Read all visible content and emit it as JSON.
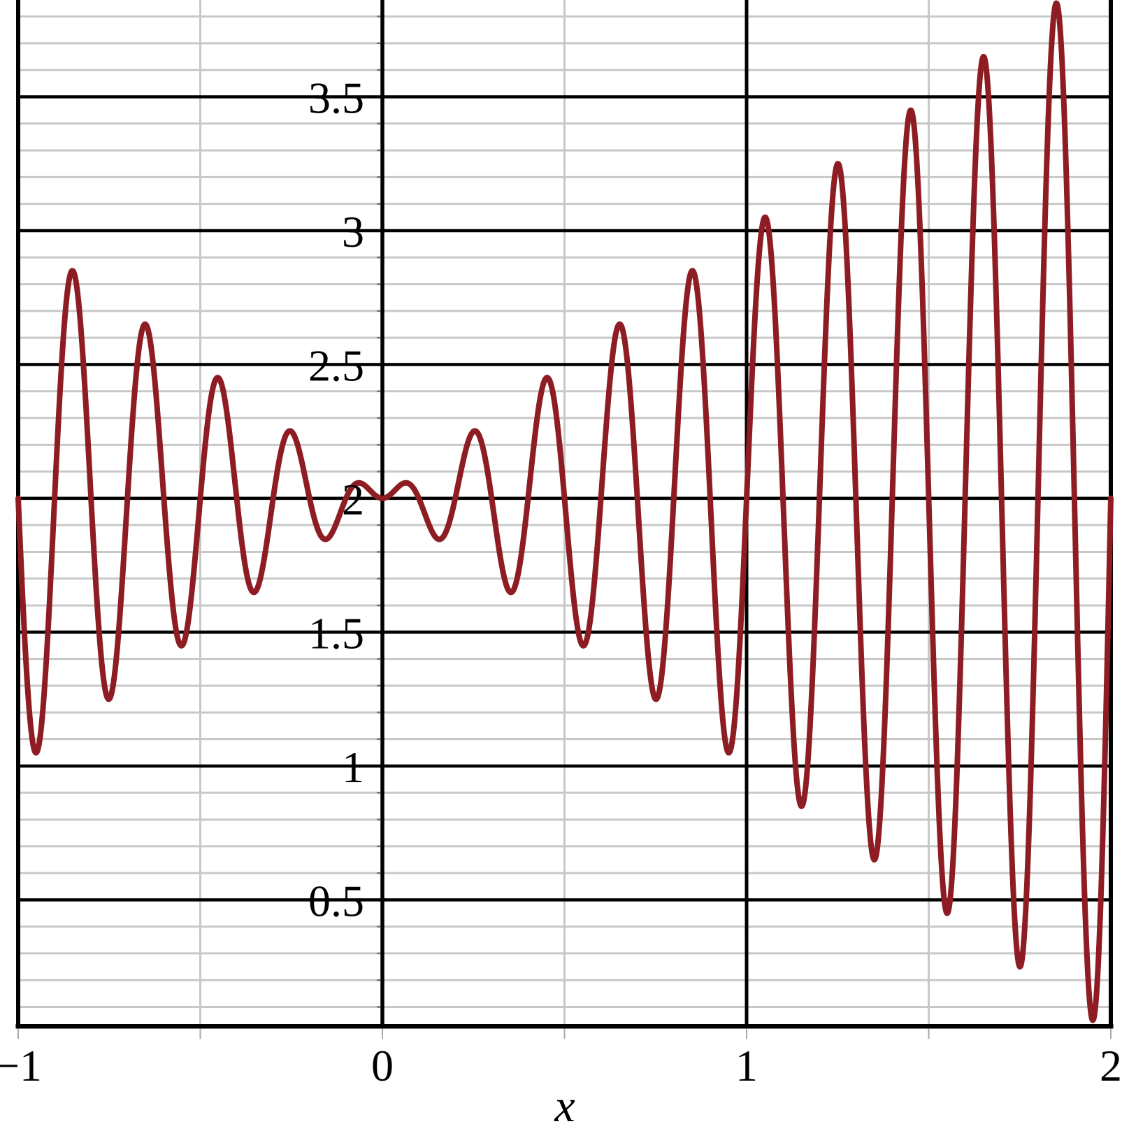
{
  "figure": {
    "background": "#FFFFFF"
  },
  "chart_data": {
    "type": "line",
    "title": "",
    "xlabel": "x",
    "ylabel": "",
    "legend": "none",
    "grid": "on",
    "function": {
      "expression": "y = 2 + x*sin(10*pi*x)",
      "baseline": 2,
      "amplitude_factor": "x",
      "omega_over_pi": 10
    },
    "x_view": [
      -1,
      2
    ],
    "y_view": [
      0.0274,
      3.8617
    ],
    "sample_step": 0.002,
    "x_major_gridlines": [
      -1,
      0,
      1,
      2
    ],
    "x_minor_gridlines": [
      -0.5,
      0.5,
      1.5
    ],
    "y_major_gridlines": [
      0.5,
      1,
      1.5,
      2,
      2.5,
      3,
      3.5
    ],
    "y_minor_step": 0.1,
    "x_tick_marks": [
      -1,
      -0.5,
      0,
      0.5,
      1,
      1.5,
      2
    ],
    "x_ticks": [
      {
        "value": -1,
        "label": "−1"
      },
      {
        "value": 0,
        "label": "0"
      },
      {
        "value": 1,
        "label": "1"
      },
      {
        "value": 2,
        "label": "2"
      }
    ],
    "y_ticks": [
      {
        "value": 3.5,
        "label": "3.5"
      },
      {
        "value": 3,
        "label": "3"
      },
      {
        "value": 2.5,
        "label": "2.5"
      },
      {
        "value": 2,
        "label": "2"
      },
      {
        "value": 1.5,
        "label": "1.5"
      },
      {
        "value": 1,
        "label": "1"
      },
      {
        "value": 0.5,
        "label": "0.5"
      }
    ],
    "endpoints": [
      [
        -1,
        2
      ],
      [
        2,
        2
      ]
    ],
    "local_maxima": [
      [
        -0.85,
        2.85
      ],
      [
        -0.65,
        2.65
      ],
      [
        -0.45,
        2.45
      ],
      [
        -0.25,
        2.25
      ],
      [
        -0.05,
        2.05
      ],
      [
        0.05,
        2.05
      ],
      [
        0.25,
        2.25
      ],
      [
        0.45,
        2.45
      ],
      [
        0.65,
        2.65
      ],
      [
        0.85,
        2.85
      ],
      [
        1.05,
        3.05
      ],
      [
        1.25,
        3.25
      ],
      [
        1.45,
        3.45
      ],
      [
        1.65,
        3.65
      ],
      [
        1.85,
        3.85
      ]
    ],
    "local_minima": [
      [
        -0.95,
        1.05
      ],
      [
        -0.75,
        1.25
      ],
      [
        -0.55,
        1.45
      ],
      [
        -0.35,
        1.65
      ],
      [
        -0.15,
        1.85
      ],
      [
        0,
        2
      ],
      [
        0.15,
        1.85
      ],
      [
        0.35,
        1.65
      ],
      [
        0.55,
        1.45
      ],
      [
        0.75,
        1.25
      ],
      [
        0.95,
        1.05
      ],
      [
        1.15,
        0.85
      ],
      [
        1.35,
        0.65
      ],
      [
        1.55,
        0.45
      ],
      [
        1.75,
        0.25
      ],
      [
        1.95,
        0.05
      ]
    ]
  },
  "style": {
    "curve_color": "#8E1C23",
    "curve_width": 8,
    "major_grid_color": "#000000",
    "minor_grid_color": "#C8C8C8",
    "axis_color": "#000000",
    "border_color": "#000000",
    "tick_mark_color": "#A9A9A9",
    "axis_nub_color": "#6E6E6E",
    "label_color": "#000000"
  }
}
